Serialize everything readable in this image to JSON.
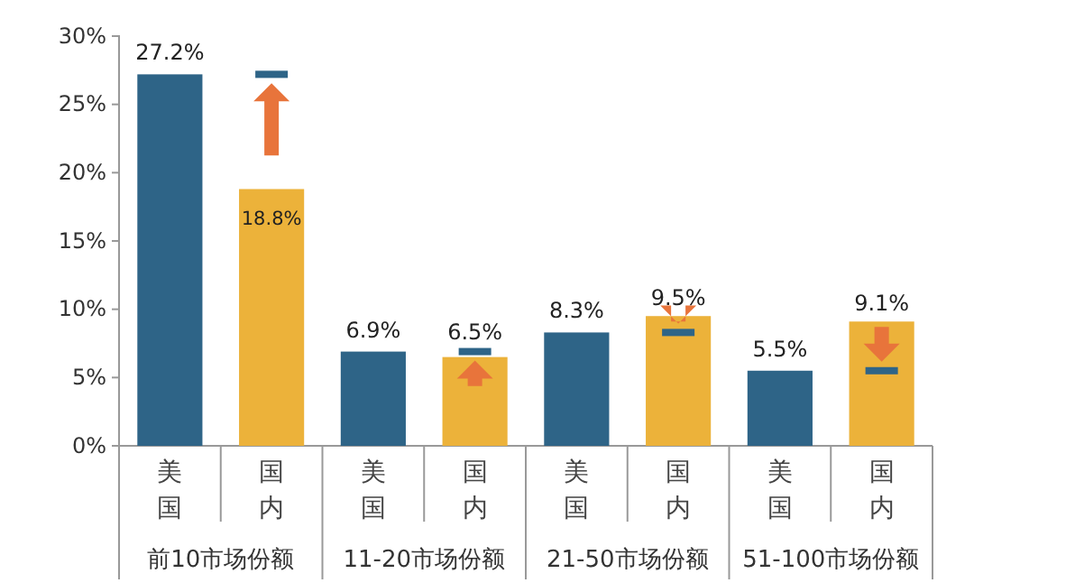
{
  "chart_data": {
    "type": "bar",
    "categories": [
      "美国",
      "国内",
      "美国",
      "国内",
      "美国",
      "国内",
      "美国",
      "国内"
    ],
    "values": [
      27.2,
      18.8,
      6.9,
      6.5,
      8.3,
      9.5,
      5.5,
      9.1
    ],
    "colors": [
      "#2e6487",
      "#ecb23a",
      "#2e6487",
      "#ecb23a",
      "#2e6487",
      "#ecb23a",
      "#2e6487",
      "#ecb23a"
    ],
    "value_labels": [
      "27.2%",
      "18.8%",
      "6.9%",
      "6.5%",
      "8.3%",
      "9.5%",
      "5.5%",
      "9.1%"
    ],
    "ylim": [
      0,
      30
    ],
    "yticks": [
      {
        "value": 0,
        "label": "0%"
      },
      {
        "value": 5,
        "label": "5%"
      },
      {
        "value": 10,
        "label": "10%"
      },
      {
        "value": 15,
        "label": "15%"
      },
      {
        "value": 20,
        "label": "20%"
      },
      {
        "value": 25,
        "label": "25%"
      },
      {
        "value": 30,
        "label": "30%"
      }
    ],
    "annotations": [
      "前10市场份额",
      "11-20市场份额",
      "21-50市场份额",
      "51-100市场份额"
    ],
    "grid": false
  }
}
